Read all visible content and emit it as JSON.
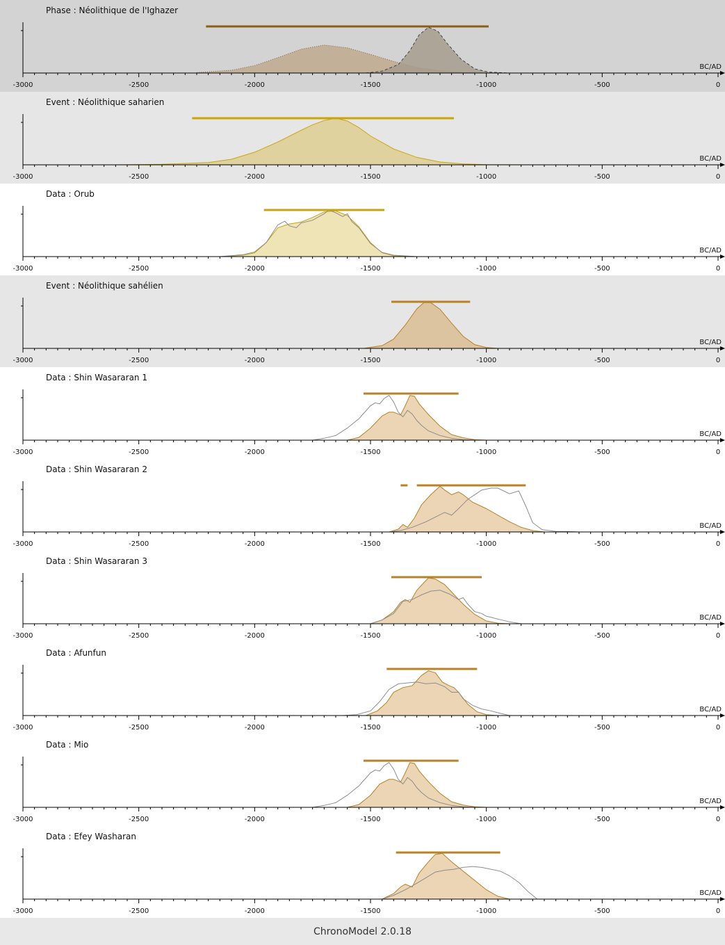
{
  "footer": {
    "label": "ChronoModel 2.0.18"
  },
  "colors": {
    "phase_bg": "#d3d3d3",
    "event_bg": "#e6e6e6",
    "data_bg": "#ffffff",
    "hpd_dark": "#8b5e12",
    "hpd_gold": "#c9a411",
    "hpd_bronze": "#b8812b",
    "axis": "#000000",
    "calib_line": "#8c8c8c"
  },
  "chart_data": [
    {
      "type": "area",
      "title": "Phase : Néolithique de l'Ighazer",
      "kind": "phase",
      "xlabel": "BC/AD",
      "xlim": [
        -3000,
        0
      ],
      "xticks": [
        "-3000",
        "-2500",
        "-2000",
        "-1500",
        "-1000",
        "-500",
        "0"
      ],
      "hpd": [
        [
          -2210,
          -990
        ]
      ],
      "series": [
        {
          "role": "begin",
          "fill": "#bfa98e",
          "stroke": "#8a6a44",
          "dash": "dotted",
          "x": [
            -2250,
            -2100,
            -2000,
            -1900,
            -1800,
            -1700,
            -1600,
            -1500,
            -1400,
            -1300,
            -1200,
            -1100,
            -1050
          ],
          "y": [
            0.01,
            0.06,
            0.16,
            0.33,
            0.51,
            0.6,
            0.54,
            0.4,
            0.25,
            0.12,
            0.05,
            0.01,
            0
          ]
        },
        {
          "role": "end",
          "fill": "#a69c8c",
          "stroke": "#444444",
          "dash": "dashed",
          "x": [
            -1520,
            -1450,
            -1380,
            -1330,
            -1290,
            -1250,
            -1210,
            -1170,
            -1110,
            -1050,
            -990,
            -900
          ],
          "y": [
            0,
            0.04,
            0.18,
            0.48,
            0.82,
            0.98,
            0.9,
            0.64,
            0.3,
            0.09,
            0.02,
            0
          ]
        }
      ]
    },
    {
      "type": "area",
      "title": "Event : Néolithique saharien",
      "kind": "event",
      "xlabel": "BC/AD",
      "xlim": [
        -3000,
        0
      ],
      "xticks": [
        "-3000",
        "-2500",
        "-2000",
        "-1500",
        "-1000",
        "-500",
        "0"
      ],
      "hpd": [
        [
          -2270,
          -1140
        ]
      ],
      "series": [
        {
          "role": "posterior",
          "fill": "#dfd29e",
          "stroke": "#c9a411",
          "x": [
            -2600,
            -2400,
            -2200,
            -2100,
            -2000,
            -1900,
            -1800,
            -1750,
            -1700,
            -1650,
            -1600,
            -1550,
            -1500,
            -1400,
            -1300,
            -1200,
            -1100,
            -1000,
            -800
          ],
          "y": [
            0,
            0.01,
            0.05,
            0.12,
            0.27,
            0.49,
            0.74,
            0.86,
            0.95,
            1.0,
            0.94,
            0.8,
            0.62,
            0.34,
            0.16,
            0.06,
            0.02,
            0.005,
            0
          ]
        }
      ]
    },
    {
      "type": "area",
      "title": "Data : Orub",
      "kind": "data",
      "xlabel": "BC/AD",
      "xlim": [
        -3000,
        0
      ],
      "xticks": [
        "-3000",
        "-2500",
        "-2000",
        "-1500",
        "-1000",
        "-500",
        "0"
      ],
      "hpd": [
        [
          -1960,
          -1440
        ]
      ],
      "series": [
        {
          "role": "posterior",
          "fill": "#efe4b5",
          "stroke": "#c9a411",
          "x": [
            -2130,
            -2050,
            -2000,
            -1950,
            -1900,
            -1850,
            -1800,
            -1750,
            -1700,
            -1650,
            -1600,
            -1550,
            -1500,
            -1450,
            -1400,
            -1300
          ],
          "y": [
            0,
            0.03,
            0.08,
            0.3,
            0.62,
            0.7,
            0.74,
            0.84,
            0.96,
            0.98,
            0.88,
            0.64,
            0.3,
            0.08,
            0.02,
            0
          ]
        },
        {
          "role": "calibration",
          "fill": "none",
          "stroke": "#8c8c8c",
          "x": [
            -2150,
            -2050,
            -2000,
            -1950,
            -1900,
            -1870,
            -1850,
            -1820,
            -1800,
            -1750,
            -1700,
            -1680,
            -1650,
            -1620,
            -1600,
            -1580,
            -1550,
            -1500,
            -1450,
            -1400,
            -1300
          ],
          "y": [
            0,
            0.04,
            0.1,
            0.3,
            0.68,
            0.76,
            0.66,
            0.62,
            0.72,
            0.78,
            0.92,
            1.0,
            0.94,
            0.86,
            0.92,
            0.75,
            0.62,
            0.28,
            0.09,
            0.03,
            0
          ]
        }
      ]
    },
    {
      "type": "area",
      "title": "Event : Néolithique sahélien",
      "kind": "event",
      "xlabel": "BC/AD",
      "xlim": [
        -3000,
        0
      ],
      "xticks": [
        "-3000",
        "-2500",
        "-2000",
        "-1500",
        "-1000",
        "-500",
        "0"
      ],
      "hpd": [
        [
          -1410,
          -1070
        ]
      ],
      "series": [
        {
          "role": "posterior",
          "fill": "#dcc4a0",
          "stroke": "#b8812b",
          "x": [
            -1530,
            -1450,
            -1400,
            -1350,
            -1300,
            -1270,
            -1240,
            -1200,
            -1150,
            -1100,
            -1050,
            -1000,
            -950
          ],
          "y": [
            0,
            0.06,
            0.2,
            0.5,
            0.85,
            0.98,
            0.98,
            0.84,
            0.54,
            0.26,
            0.08,
            0.02,
            0
          ]
        }
      ]
    },
    {
      "type": "area",
      "title": "Data : Shin Wasararan 1",
      "kind": "data",
      "xlabel": "BC/AD",
      "xlim": [
        -3000,
        0
      ],
      "xticks": [
        "-3000",
        "-2500",
        "-2000",
        "-1500",
        "-1000",
        "-500",
        "0"
      ],
      "hpd": [
        [
          -1530,
          -1120
        ]
      ],
      "series": [
        {
          "role": "posterior",
          "fill": "#ecd5b4",
          "stroke": "#b8812b",
          "x": [
            -1600,
            -1550,
            -1500,
            -1450,
            -1420,
            -1400,
            -1370,
            -1350,
            -1330,
            -1310,
            -1290,
            -1250,
            -1200,
            -1150,
            -1100,
            -1050,
            -1000
          ],
          "y": [
            0,
            0.06,
            0.26,
            0.52,
            0.6,
            0.6,
            0.54,
            0.74,
            0.96,
            0.94,
            0.78,
            0.55,
            0.3,
            0.12,
            0.05,
            0.01,
            0
          ]
        },
        {
          "role": "calibration",
          "fill": "none",
          "stroke": "#8c8c8c",
          "x": [
            -1750,
            -1700,
            -1650,
            -1600,
            -1550,
            -1500,
            -1480,
            -1460,
            -1440,
            -1420,
            -1400,
            -1380,
            -1360,
            -1340,
            -1320,
            -1300,
            -1280,
            -1250,
            -1200,
            -1150,
            -1100,
            -1050
          ],
          "y": [
            0,
            0.04,
            0.1,
            0.26,
            0.46,
            0.74,
            0.8,
            0.78,
            0.9,
            0.96,
            0.82,
            0.6,
            0.5,
            0.64,
            0.56,
            0.42,
            0.32,
            0.2,
            0.1,
            0.04,
            0.01,
            0
          ]
        }
      ]
    },
    {
      "type": "area",
      "title": "Data : Shin Wasararan 2",
      "kind": "data",
      "xlabel": "BC/AD",
      "xlim": [
        -3000,
        0
      ],
      "xticks": [
        "-3000",
        "-2500",
        "-2000",
        "-1500",
        "-1000",
        "-500",
        "0"
      ],
      "hpd": [
        [
          -1370,
          -1340
        ],
        [
          -1300,
          -830
        ]
      ],
      "series": [
        {
          "role": "posterior",
          "fill": "#ecd5b4",
          "stroke": "#b8812b",
          "x": [
            -1420,
            -1380,
            -1360,
            -1340,
            -1310,
            -1280,
            -1240,
            -1200,
            -1180,
            -1150,
            -1120,
            -1100,
            -1060,
            -1000,
            -950,
            -900,
            -850,
            -800,
            -750
          ],
          "y": [
            0,
            0.06,
            0.16,
            0.1,
            0.3,
            0.58,
            0.8,
            0.98,
            0.9,
            0.8,
            0.86,
            0.8,
            0.64,
            0.5,
            0.36,
            0.22,
            0.1,
            0.03,
            0
          ]
        },
        {
          "role": "calibration",
          "fill": "none",
          "stroke": "#8c8c8c",
          "x": [
            -1420,
            -1370,
            -1320,
            -1260,
            -1220,
            -1180,
            -1150,
            -1120,
            -1100,
            -1080,
            -1050,
            -1020,
            -980,
            -950,
            -900,
            -860,
            -830,
            -800,
            -760,
            -700,
            -650,
            -600
          ],
          "y": [
            0,
            0.03,
            0.1,
            0.22,
            0.32,
            0.42,
            0.36,
            0.5,
            0.6,
            0.7,
            0.8,
            0.9,
            0.94,
            0.94,
            0.82,
            0.88,
            0.56,
            0.2,
            0.05,
            0.01,
            0.01,
            0
          ]
        }
      ]
    },
    {
      "type": "area",
      "title": "Data : Shin Wasararan 3",
      "kind": "data",
      "xlabel": "BC/AD",
      "xlim": [
        -3000,
        0
      ],
      "xticks": [
        "-3000",
        "-2500",
        "-2000",
        "-1500",
        "-1000",
        "-500",
        "0"
      ],
      "hpd": [
        [
          -1410,
          -1020
        ]
      ],
      "series": [
        {
          "role": "posterior",
          "fill": "#ecd5b4",
          "stroke": "#b8812b",
          "x": [
            -1500,
            -1450,
            -1400,
            -1370,
            -1350,
            -1330,
            -1300,
            -1270,
            -1250,
            -1220,
            -1180,
            -1150,
            -1100,
            -1050,
            -1000,
            -950,
            -900
          ],
          "y": [
            0,
            0.08,
            0.26,
            0.46,
            0.52,
            0.46,
            0.72,
            0.88,
            0.98,
            0.96,
            0.84,
            0.68,
            0.42,
            0.2,
            0.06,
            0.01,
            0
          ]
        },
        {
          "role": "calibration",
          "fill": "none",
          "stroke": "#8c8c8c",
          "x": [
            -1500,
            -1450,
            -1400,
            -1360,
            -1320,
            -1280,
            -1240,
            -1200,
            -1160,
            -1120,
            -1100,
            -1080,
            -1050,
            -1020,
            -1000,
            -980,
            -950,
            -900,
            -850
          ],
          "y": [
            0,
            0.08,
            0.22,
            0.48,
            0.52,
            0.62,
            0.7,
            0.72,
            0.64,
            0.52,
            0.56,
            0.42,
            0.26,
            0.22,
            0.16,
            0.14,
            0.1,
            0.04,
            0
          ]
        }
      ]
    },
    {
      "type": "area",
      "title": "Data : Afunfun",
      "kind": "data",
      "xlabel": "BC/AD",
      "xlim": [
        -3000,
        0
      ],
      "xticks": [
        "-3000",
        "-2500",
        "-2000",
        "-1500",
        "-1000",
        "-500",
        "0"
      ],
      "hpd": [
        [
          -1430,
          -1040
        ]
      ],
      "series": [
        {
          "role": "posterior",
          "fill": "#ecd5b4",
          "stroke": "#b8812b",
          "x": [
            -1520,
            -1470,
            -1430,
            -1400,
            -1360,
            -1320,
            -1280,
            -1250,
            -1220,
            -1190,
            -1160,
            -1140,
            -1120,
            -1080,
            -1040,
            -1000,
            -950
          ],
          "y": [
            0,
            0.1,
            0.28,
            0.5,
            0.6,
            0.64,
            0.86,
            0.96,
            0.92,
            0.72,
            0.64,
            0.6,
            0.5,
            0.24,
            0.08,
            0.02,
            0
          ]
        },
        {
          "role": "calibration",
          "fill": "none",
          "stroke": "#8c8c8c",
          "x": [
            -1620,
            -1560,
            -1500,
            -1460,
            -1420,
            -1380,
            -1340,
            -1300,
            -1260,
            -1220,
            -1180,
            -1150,
            -1120,
            -1100,
            -1060,
            -1020,
            -980,
            -950,
            -900
          ],
          "y": [
            0,
            0.02,
            0.1,
            0.3,
            0.56,
            0.68,
            0.7,
            0.72,
            0.68,
            0.7,
            0.62,
            0.5,
            0.5,
            0.36,
            0.22,
            0.14,
            0.1,
            0.06,
            0
          ]
        }
      ]
    },
    {
      "type": "area",
      "title": "Data : Mio",
      "kind": "data",
      "xlabel": "BC/AD",
      "xlim": [
        -3000,
        0
      ],
      "xticks": [
        "-3000",
        "-2500",
        "-2000",
        "-1500",
        "-1000",
        "-500",
        "0"
      ],
      "hpd": [
        [
          -1530,
          -1120
        ]
      ],
      "series": [
        {
          "role": "posterior",
          "fill": "#ecd5b4",
          "stroke": "#b8812b",
          "x": [
            -1600,
            -1550,
            -1500,
            -1460,
            -1420,
            -1400,
            -1370,
            -1350,
            -1330,
            -1310,
            -1290,
            -1250,
            -1200,
            -1150,
            -1100,
            -1050,
            -1000
          ],
          "y": [
            0,
            0.06,
            0.26,
            0.5,
            0.6,
            0.6,
            0.54,
            0.74,
            0.96,
            0.94,
            0.78,
            0.55,
            0.3,
            0.12,
            0.05,
            0.01,
            0
          ]
        },
        {
          "role": "calibration",
          "fill": "none",
          "stroke": "#8c8c8c",
          "x": [
            -1750,
            -1700,
            -1650,
            -1600,
            -1550,
            -1500,
            -1480,
            -1460,
            -1440,
            -1420,
            -1400,
            -1380,
            -1360,
            -1340,
            -1320,
            -1300,
            -1280,
            -1250,
            -1200,
            -1150,
            -1100,
            -1050
          ],
          "y": [
            0,
            0.04,
            0.1,
            0.26,
            0.46,
            0.74,
            0.8,
            0.78,
            0.9,
            0.96,
            0.82,
            0.6,
            0.5,
            0.64,
            0.56,
            0.42,
            0.32,
            0.2,
            0.1,
            0.04,
            0.01,
            0
          ]
        }
      ]
    },
    {
      "type": "area",
      "title": "Data : Efey Washaran",
      "kind": "data",
      "xlabel": "BC/AD",
      "xlim": [
        -3000,
        0
      ],
      "xticks": [
        "-3000",
        "-2500",
        "-2000",
        "-1500",
        "-1000",
        "-500",
        "0"
      ],
      "hpd": [
        [
          -1390,
          -940
        ]
      ],
      "series": [
        {
          "role": "posterior",
          "fill": "#ecd5b4",
          "stroke": "#b8812b",
          "x": [
            -1450,
            -1400,
            -1370,
            -1350,
            -1320,
            -1290,
            -1250,
            -1220,
            -1190,
            -1150,
            -1100,
            -1050,
            -1000,
            -950,
            -900
          ],
          "y": [
            0,
            0.12,
            0.26,
            0.32,
            0.26,
            0.56,
            0.8,
            0.96,
            0.98,
            0.8,
            0.6,
            0.4,
            0.2,
            0.06,
            0
          ]
        },
        {
          "role": "calibration",
          "fill": "none",
          "stroke": "#8c8c8c",
          "x": [
            -1450,
            -1400,
            -1350,
            -1300,
            -1260,
            -1220,
            -1180,
            -1140,
            -1100,
            -1060,
            -1020,
            -980,
            -940,
            -900,
            -860,
            -820,
            -780
          ],
          "y": [
            0,
            0.08,
            0.2,
            0.34,
            0.46,
            0.58,
            0.62,
            0.64,
            0.68,
            0.7,
            0.68,
            0.64,
            0.6,
            0.5,
            0.36,
            0.16,
            0
          ]
        }
      ]
    }
  ]
}
